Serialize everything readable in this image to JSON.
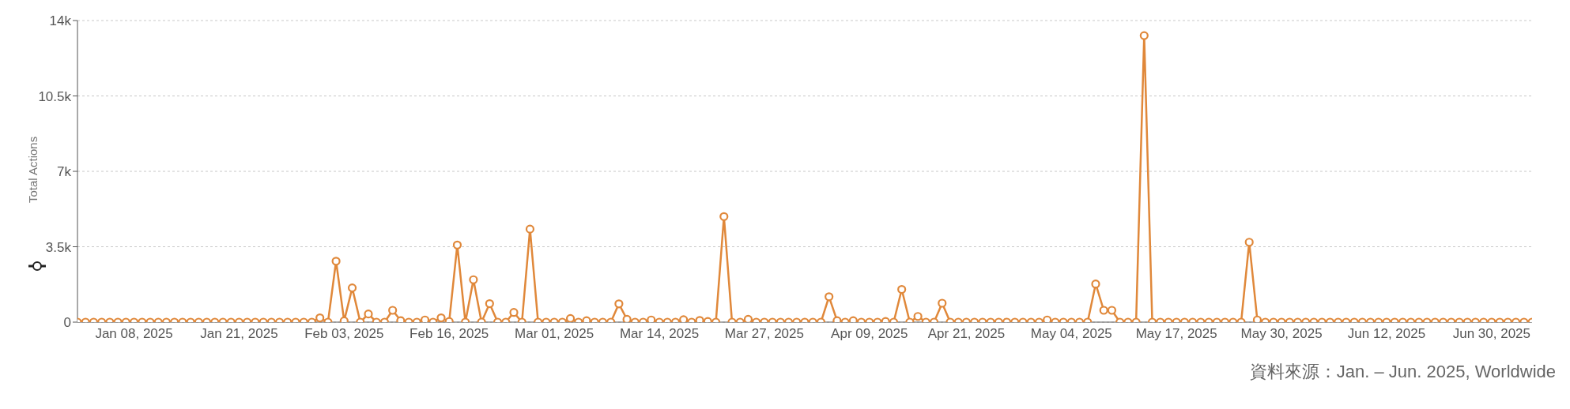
{
  "chart_data": {
    "type": "line",
    "ylabel": "Total Actions",
    "categories": [
      null,
      null,
      null,
      null,
      null,
      null,
      null,
      "Jan 08, 2025",
      null,
      null,
      null,
      null,
      null,
      null,
      null,
      null,
      null,
      null,
      null,
      null,
      "Jan 21, 2025",
      null,
      null,
      null,
      null,
      null,
      null,
      null,
      null,
      null,
      null,
      null,
      null,
      "Feb 03, 2025",
      null,
      null,
      null,
      null,
      null,
      null,
      null,
      null,
      null,
      null,
      null,
      null,
      "Feb 16, 2025",
      null,
      null,
      null,
      null,
      null,
      null,
      null,
      null,
      null,
      null,
      null,
      null,
      "Mar 01, 2025",
      null,
      null,
      null,
      null,
      null,
      null,
      null,
      null,
      null,
      null,
      null,
      null,
      "Mar 14, 2025",
      null,
      null,
      null,
      null,
      null,
      null,
      null,
      null,
      null,
      null,
      null,
      null,
      "Mar 27, 2025",
      null,
      null,
      null,
      null,
      null,
      null,
      null,
      null,
      null,
      null,
      null,
      null,
      "Apr 09, 2025",
      null,
      null,
      null,
      null,
      null,
      null,
      null,
      null,
      null,
      null,
      null,
      "Apr 21, 2025",
      null,
      null,
      null,
      null,
      null,
      null,
      null,
      null,
      null,
      null,
      null,
      null,
      "May 04, 2025",
      null,
      null,
      null,
      null,
      null,
      null,
      null,
      null,
      null,
      null,
      null,
      null,
      "May 17, 2025",
      null,
      null,
      null,
      null,
      null,
      null,
      null,
      null,
      null,
      null,
      null,
      null,
      "May 30, 2025",
      null,
      null,
      null,
      null,
      null,
      null,
      null,
      null,
      null,
      null,
      null,
      null,
      "Jun 12, 2025",
      null,
      null,
      null,
      null,
      null,
      null,
      null,
      null,
      null,
      null,
      null,
      null,
      "Jun 30, 2025",
      null,
      null,
      null,
      null,
      null
    ],
    "series": [
      {
        "color": "#e0883a",
        "values": [
          0,
          0,
          0,
          0,
          0,
          0,
          0,
          0,
          0,
          0,
          0,
          0,
          0,
          0,
          0,
          0,
          0,
          0,
          0,
          0,
          0,
          0,
          0,
          0,
          0,
          0,
          0,
          0,
          0,
          0,
          200,
          0,
          2830,
          60,
          1590,
          0,
          380,
          0,
          0,
          550,
          70,
          0,
          0,
          100,
          0,
          200,
          30,
          3580,
          0,
          1970,
          0,
          860,
          0,
          0,
          450,
          0,
          4320,
          0,
          0,
          0,
          0,
          170,
          0,
          70,
          0,
          0,
          0,
          850,
          130,
          0,
          0,
          100,
          0,
          0,
          0,
          115,
          0,
          80,
          30,
          0,
          4900,
          0,
          0,
          130,
          0,
          0,
          0,
          0,
          0,
          0,
          0,
          0,
          0,
          1180,
          70,
          0,
          70,
          0,
          0,
          0,
          30,
          0,
          1520,
          0,
          265,
          0,
          0,
          880,
          0,
          0,
          0,
          0,
          0,
          0,
          0,
          0,
          0,
          0,
          0,
          0,
          100,
          0,
          0,
          0,
          0,
          0,
          1770,
          550,
          550,
          0,
          0,
          0,
          13300,
          0,
          0,
          0,
          0,
          0,
          0,
          0,
          0,
          0,
          0,
          0,
          0,
          3710,
          100,
          0,
          0,
          0,
          0,
          0,
          0,
          0,
          0,
          0,
          0,
          0,
          0,
          0,
          0,
          0,
          0,
          0,
          0,
          0,
          0,
          0,
          0,
          0,
          0,
          0,
          0,
          0,
          0,
          0,
          0,
          0,
          0,
          0,
          0
        ]
      }
    ],
    "ylim": [
      0,
      14000
    ],
    "yticks": [
      0,
      {
        "value": 3500,
        "label": "3.5k"
      },
      {
        "value": 7000,
        "label": "7k"
      },
      {
        "value": 10500,
        "label": "10.5k"
      },
      {
        "value": 14000,
        "label": "14k"
      }
    ],
    "grid": "y",
    "marker": "circle",
    "line_style": "solid",
    "annotations": [
      "資料來源：Jan.  – Jun. 2025, Worldwide"
    ]
  }
}
